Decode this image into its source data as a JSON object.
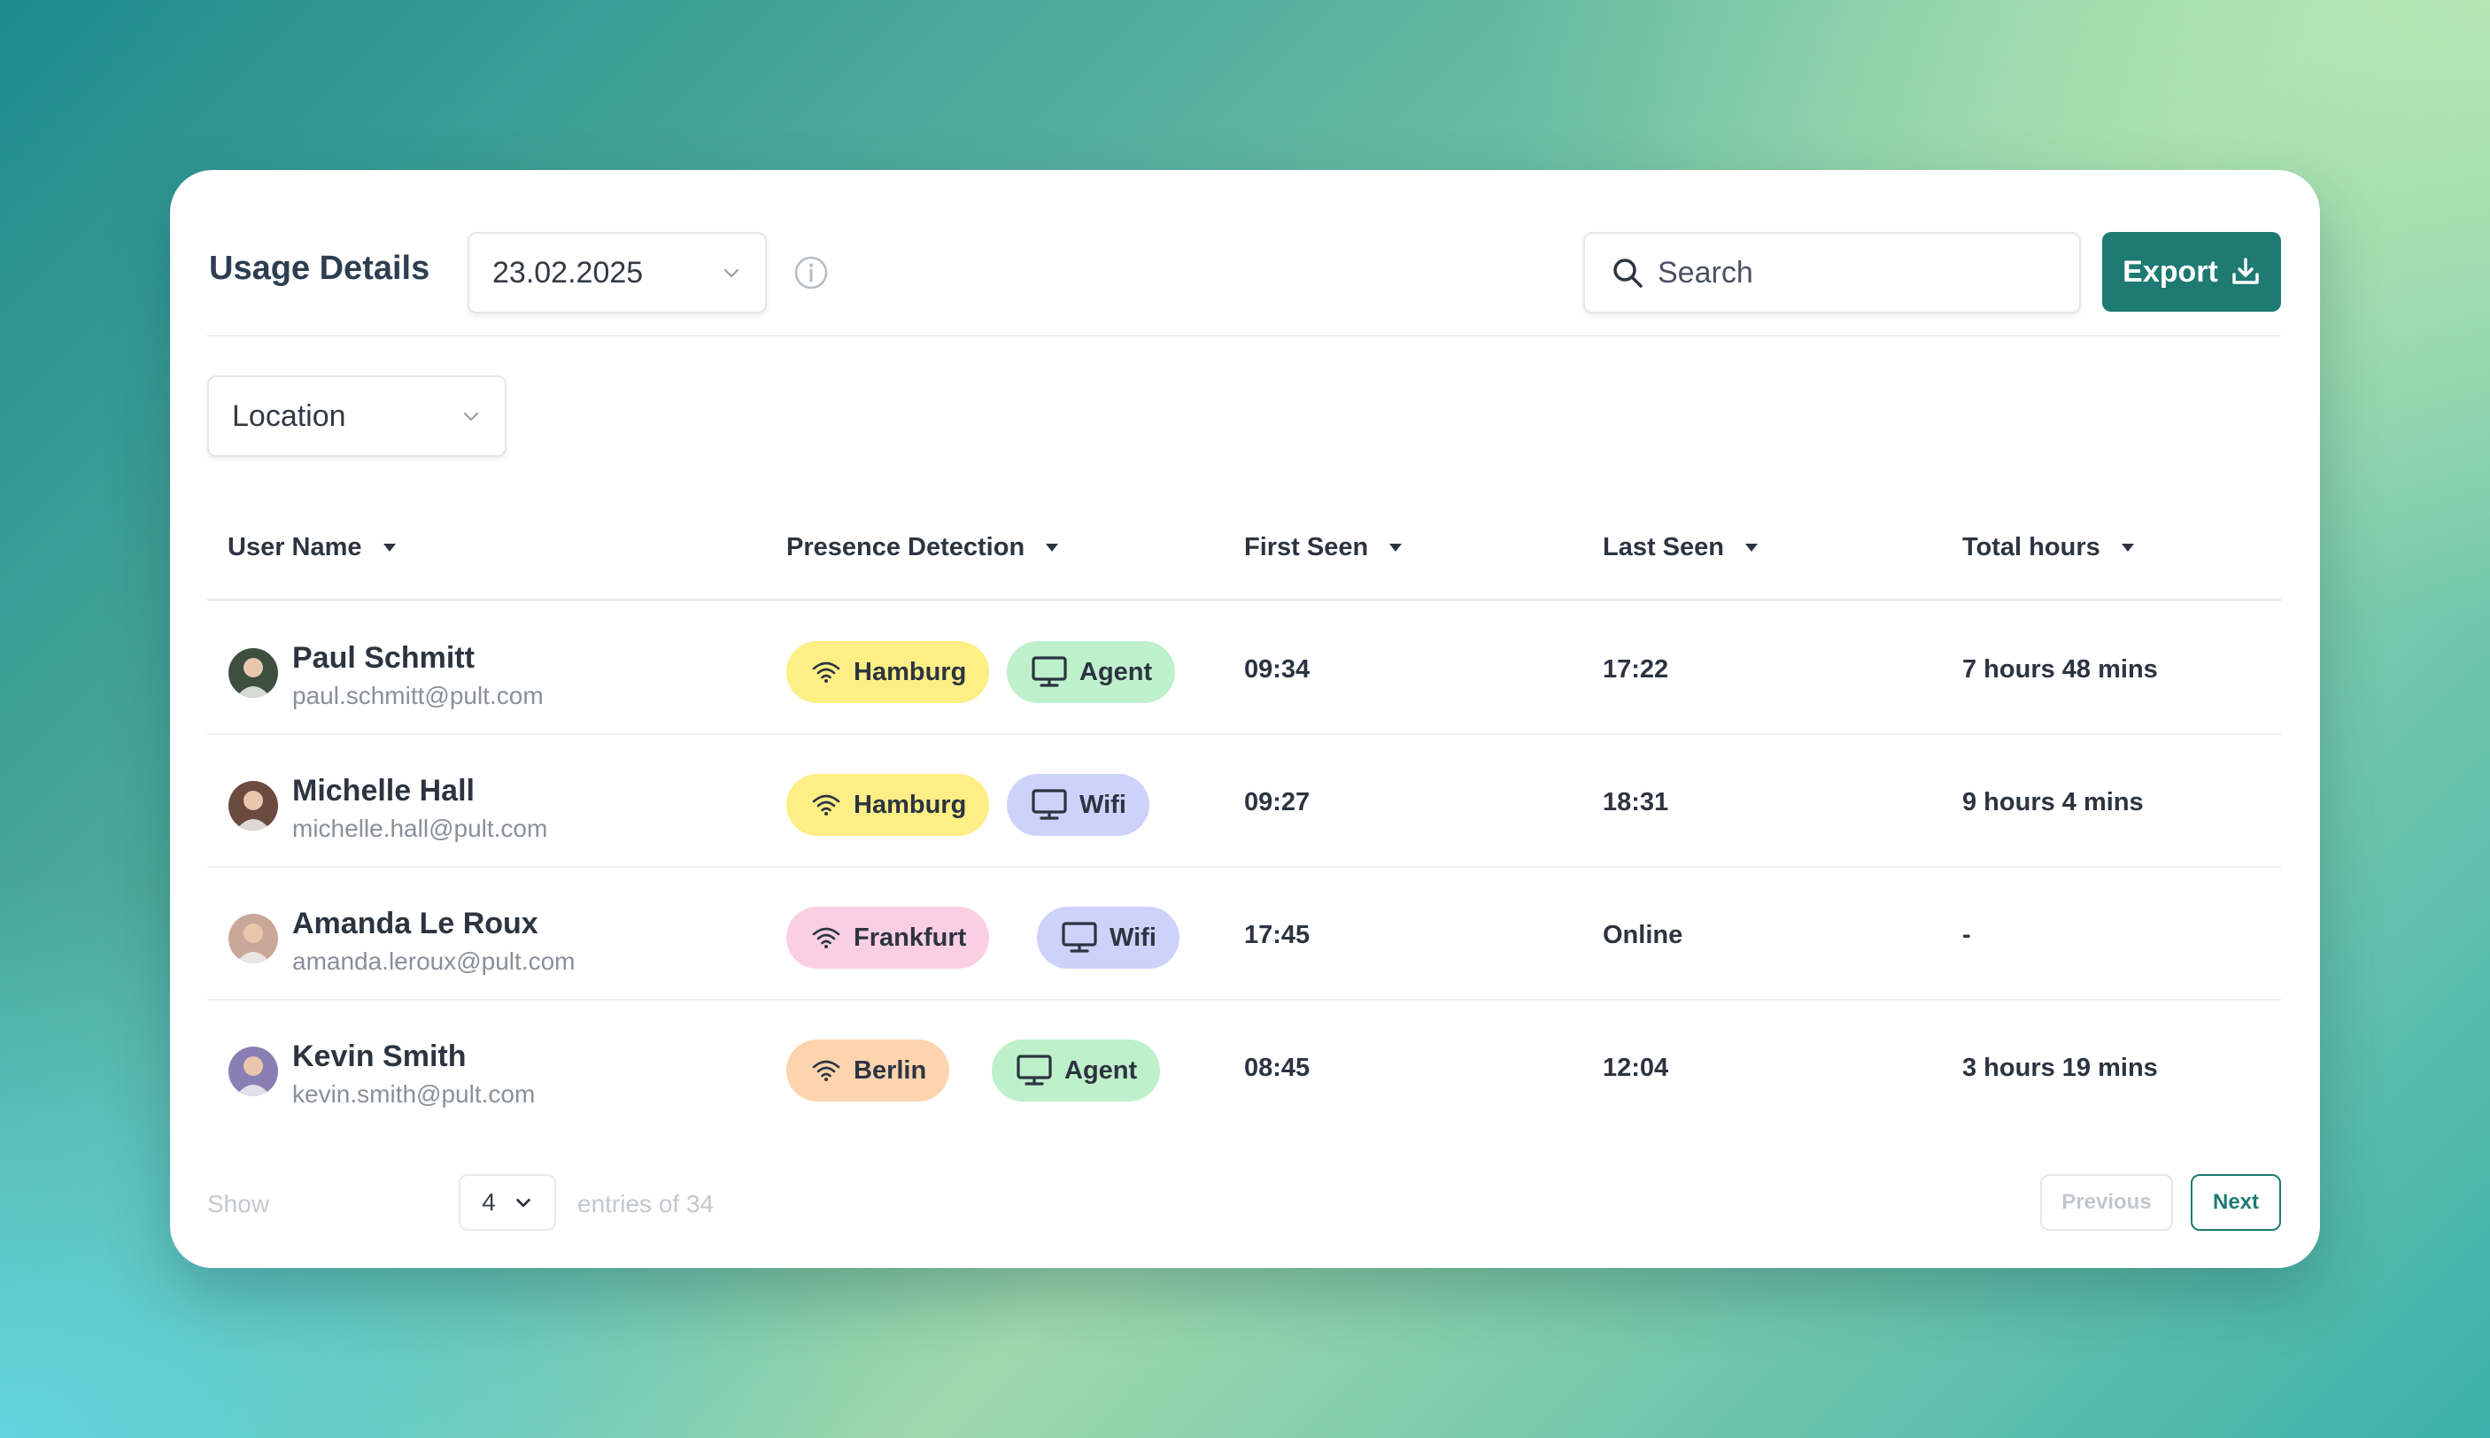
{
  "header": {
    "title": "Usage Details",
    "date_value": "23.02.2025",
    "search_placeholder": "Search",
    "export_label": "Export"
  },
  "filters": {
    "location_label": "Location"
  },
  "table": {
    "columns": [
      "User Name",
      "Presence Detection",
      "First Seen",
      "Last Seen",
      "Total hours"
    ],
    "rows": [
      {
        "name": "Paul Schmitt",
        "email": "paul.schmitt@pult.com",
        "location": "Hamburg",
        "location_color": "#fdee86",
        "method": "Agent",
        "method_color": "#bff0cc",
        "first_seen": "09:34",
        "last_seen": "17:22",
        "total": "7 hours 48 mins",
        "avatar_color": "#3d4f3f"
      },
      {
        "name": "Michelle Hall",
        "email": "michelle.hall@pult.com",
        "location": "Hamburg",
        "location_color": "#fdee86",
        "method": "Wifi",
        "method_color": "#cdd2fb",
        "first_seen": "09:27",
        "last_seen": "18:31",
        "total": "9 hours 4 mins",
        "avatar_color": "#6b4a3f"
      },
      {
        "name": "Amanda Le Roux",
        "email": "amanda.leroux@pult.com",
        "location": "Frankfurt",
        "location_color": "#fbcfe3",
        "method": "Wifi",
        "method_color": "#cdd2fb",
        "first_seen": "17:45",
        "last_seen": "Online",
        "total": "-",
        "avatar_color": "#c9a89a"
      },
      {
        "name": "Kevin Smith",
        "email": "kevin.smith@pult.com",
        "location": "Berlin",
        "location_color": "#fdd4ae",
        "method": "Agent",
        "method_color": "#bff0cc",
        "first_seen": "08:45",
        "last_seen": "12:04",
        "total": "3 hours 19 mins",
        "avatar_color": "#8a7fb5"
      }
    ]
  },
  "footer": {
    "show_label": "Show",
    "page_size": "4",
    "entries_label": "entries of 34",
    "previous_label": "Previous",
    "next_label": "Next"
  },
  "colors": {
    "accent": "#1e7a72",
    "text": "#2c3440",
    "muted": "#8a9099"
  }
}
